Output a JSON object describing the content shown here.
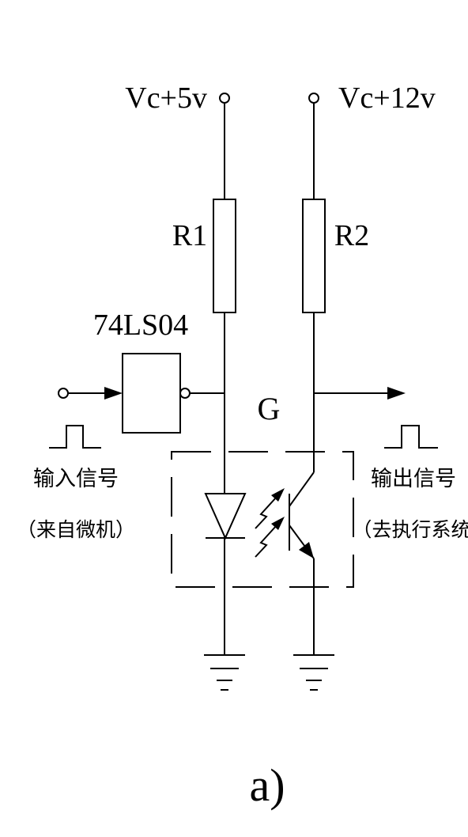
{
  "diagram": {
    "vcc_5v_label": "Vc+5v",
    "vcc_12v_label": "Vc+12v",
    "r1_label": "R1",
    "r2_label": "R2",
    "inverter_label": "74LS04",
    "node_label": "G",
    "input_signal_label": "输入信号",
    "input_signal_source": "（来自微机）",
    "output_signal_label": "输出信号",
    "output_signal_dest": "（去执行系统）",
    "caption": "a)"
  },
  "colors": {
    "line": "#000000",
    "background": "#ffffff"
  }
}
